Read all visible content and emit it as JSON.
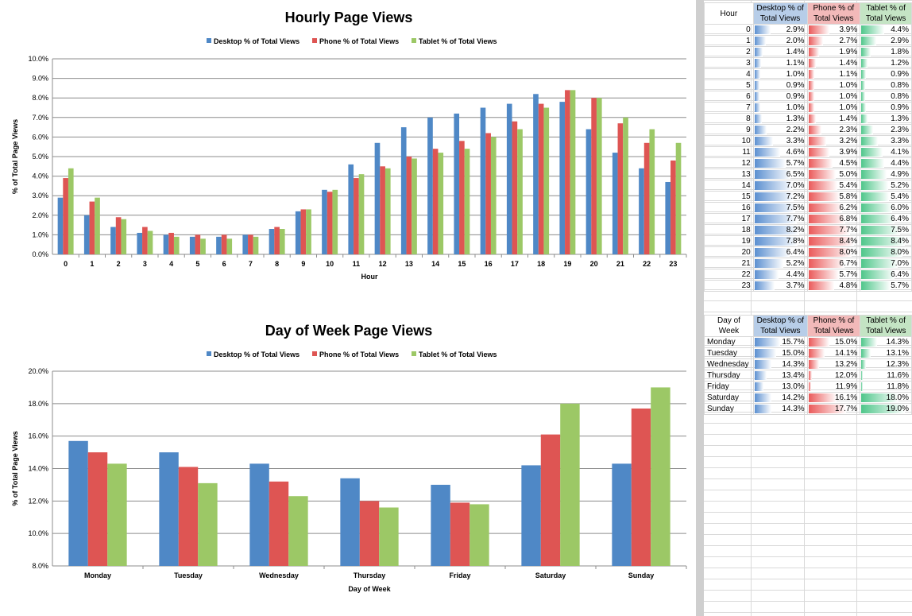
{
  "colors": {
    "desktop": "#4f88c6",
    "phone": "#de5553",
    "tablet": "#9cc866"
  },
  "chart_data": [
    {
      "type": "bar",
      "title": "Hourly Page Views",
      "xlabel": "Hour",
      "ylabel": "% of Total Page Views",
      "ylim": [
        0,
        10
      ],
      "yticks": [
        "0.0%",
        "1.0%",
        "2.0%",
        "3.0%",
        "4.0%",
        "5.0%",
        "6.0%",
        "7.0%",
        "8.0%",
        "9.0%",
        "10.0%"
      ],
      "grid": true,
      "legend": "top",
      "categories": [
        "0",
        "1",
        "2",
        "3",
        "4",
        "5",
        "6",
        "7",
        "8",
        "9",
        "10",
        "11",
        "12",
        "13",
        "14",
        "15",
        "16",
        "17",
        "18",
        "19",
        "20",
        "21",
        "22",
        "23"
      ],
      "series": [
        {
          "name": "Desktop % of Total Views",
          "values": [
            2.9,
            2.0,
            1.4,
            1.1,
            1.0,
            0.9,
            0.9,
            1.0,
            1.3,
            2.2,
            3.3,
            4.6,
            5.7,
            6.5,
            7.0,
            7.2,
            7.5,
            7.7,
            8.2,
            7.8,
            6.4,
            5.2,
            4.4,
            3.7
          ]
        },
        {
          "name": "Phone % of Total Views",
          "values": [
            3.9,
            2.7,
            1.9,
            1.4,
            1.1,
            1.0,
            1.0,
            1.0,
            1.4,
            2.3,
            3.2,
            3.9,
            4.5,
            5.0,
            5.4,
            5.8,
            6.2,
            6.8,
            7.7,
            8.4,
            8.0,
            6.7,
            5.7,
            4.8
          ]
        },
        {
          "name": "Tablet % of Total Views",
          "values": [
            4.4,
            2.9,
            1.8,
            1.2,
            0.9,
            0.8,
            0.8,
            0.9,
            1.3,
            2.3,
            3.3,
            4.1,
            4.4,
            4.9,
            5.2,
            5.4,
            6.0,
            6.4,
            7.5,
            8.4,
            8.0,
            7.0,
            6.4,
            5.7
          ]
        }
      ]
    },
    {
      "type": "bar",
      "title": "Day of Week Page Views",
      "xlabel": "Day of Week",
      "ylabel": "% of Total Page Views",
      "ylim": [
        8,
        20
      ],
      "yticks": [
        "8.0%",
        "10.0%",
        "12.0%",
        "14.0%",
        "16.0%",
        "18.0%",
        "20.0%"
      ],
      "grid": true,
      "legend": "top",
      "categories": [
        "Monday",
        "Tuesday",
        "Wednesday",
        "Thursday",
        "Friday",
        "Saturday",
        "Sunday"
      ],
      "series": [
        {
          "name": "Desktop % of Total Views",
          "values": [
            15.7,
            15.0,
            14.3,
            13.4,
            13.0,
            14.2,
            14.3
          ]
        },
        {
          "name": "Phone % of Total Views",
          "values": [
            15.0,
            14.1,
            13.2,
            12.0,
            11.9,
            16.1,
            17.7
          ]
        },
        {
          "name": "Tablet % of Total Views",
          "values": [
            14.3,
            13.1,
            12.3,
            11.6,
            11.8,
            18.0,
            19.0
          ]
        }
      ]
    }
  ],
  "sheet": {
    "hourly": {
      "headers": [
        "Hour",
        "Desktop % of Total Views",
        "Phone % of Total Views",
        "Tablet % of Total Views"
      ],
      "rows": [
        [
          "0",
          "2.9%",
          "3.9%",
          "4.4%"
        ],
        [
          "1",
          "2.0%",
          "2.7%",
          "2.9%"
        ],
        [
          "2",
          "1.4%",
          "1.9%",
          "1.8%"
        ],
        [
          "3",
          "1.1%",
          "1.4%",
          "1.2%"
        ],
        [
          "4",
          "1.0%",
          "1.1%",
          "0.9%"
        ],
        [
          "5",
          "0.9%",
          "1.0%",
          "0.8%"
        ],
        [
          "6",
          "0.9%",
          "1.0%",
          "0.8%"
        ],
        [
          "7",
          "1.0%",
          "1.0%",
          "0.9%"
        ],
        [
          "8",
          "1.3%",
          "1.4%",
          "1.3%"
        ],
        [
          "9",
          "2.2%",
          "2.3%",
          "2.3%"
        ],
        [
          "10",
          "3.3%",
          "3.2%",
          "3.3%"
        ],
        [
          "11",
          "4.6%",
          "3.9%",
          "4.1%"
        ],
        [
          "12",
          "5.7%",
          "4.5%",
          "4.4%"
        ],
        [
          "13",
          "6.5%",
          "5.0%",
          "4.9%"
        ],
        [
          "14",
          "7.0%",
          "5.4%",
          "5.2%"
        ],
        [
          "15",
          "7.2%",
          "5.8%",
          "5.4%"
        ],
        [
          "16",
          "7.5%",
          "6.2%",
          "6.0%"
        ],
        [
          "17",
          "7.7%",
          "6.8%",
          "6.4%"
        ],
        [
          "18",
          "8.2%",
          "7.7%",
          "7.5%"
        ],
        [
          "19",
          "7.8%",
          "8.4%",
          "8.4%"
        ],
        [
          "20",
          "6.4%",
          "8.0%",
          "8.0%"
        ],
        [
          "21",
          "5.2%",
          "6.7%",
          "7.0%"
        ],
        [
          "22",
          "4.4%",
          "5.7%",
          "6.4%"
        ],
        [
          "23",
          "3.7%",
          "4.8%",
          "5.7%"
        ]
      ]
    },
    "weekly": {
      "headers": [
        "Day of Week",
        "Desktop % of Total Views",
        "Phone % of Total Views",
        "Tablet % of Total Views"
      ],
      "rows": [
        [
          "Monday",
          "15.7%",
          "15.0%",
          "14.3%"
        ],
        [
          "Tuesday",
          "15.0%",
          "14.1%",
          "13.1%"
        ],
        [
          "Wednesday",
          "14.3%",
          "13.2%",
          "12.3%"
        ],
        [
          "Thursday",
          "13.4%",
          "12.0%",
          "11.6%"
        ],
        [
          "Friday",
          "13.0%",
          "11.9%",
          "11.8%"
        ],
        [
          "Saturday",
          "14.2%",
          "16.1%",
          "18.0%"
        ],
        [
          "Sunday",
          "14.3%",
          "17.7%",
          "19.0%"
        ]
      ]
    }
  }
}
